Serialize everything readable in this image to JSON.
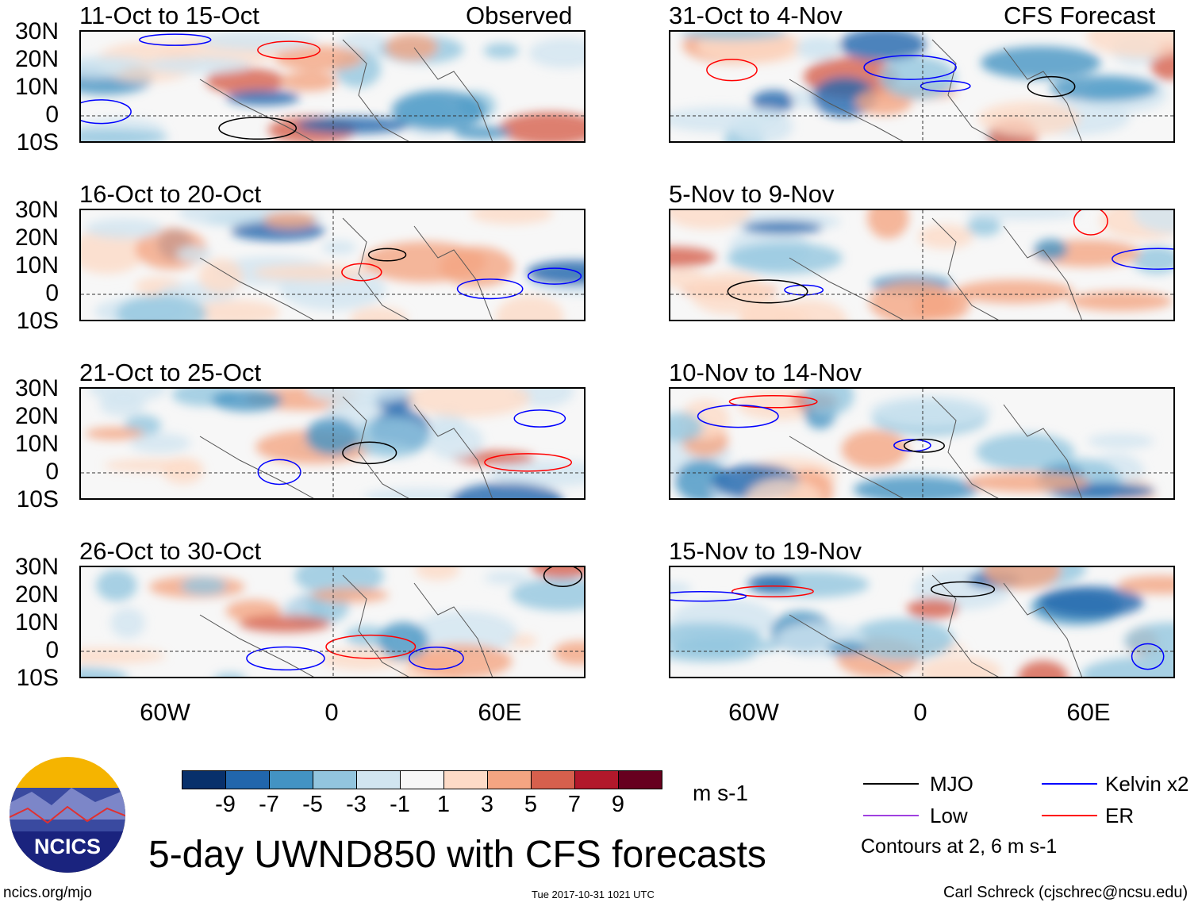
{
  "panels_left_header": "Observed",
  "panels_right_header": "CFS Forecast",
  "panels": [
    {
      "title": "11-Oct to 15-Oct",
      "side": "observed"
    },
    {
      "title": "16-Oct to 20-Oct",
      "side": "observed"
    },
    {
      "title": "21-Oct to 25-Oct",
      "side": "observed"
    },
    {
      "title": "26-Oct to 30-Oct",
      "side": "observed"
    },
    {
      "title": "31-Oct to 4-Nov",
      "side": "forecast"
    },
    {
      "title": "5-Nov to 9-Nov",
      "side": "forecast"
    },
    {
      "title": "10-Nov to 14-Nov",
      "side": "forecast"
    },
    {
      "title": "15-Nov to 19-Nov",
      "side": "forecast"
    }
  ],
  "lat_labels": [
    "30N",
    "20N",
    "10N",
    "0",
    "10S"
  ],
  "lon_labels": [
    "60W",
    "0",
    "60E"
  ],
  "colorbar": {
    "colors": [
      "#08306b",
      "#2166ac",
      "#4393c3",
      "#92c5de",
      "#d1e5f0",
      "#f7f7f7",
      "#fddbc7",
      "#f4a582",
      "#d6604d",
      "#b2182b",
      "#67001f"
    ],
    "ticks": [
      "-9",
      "-7",
      "-5",
      "-3",
      "-1",
      "1",
      "3",
      "5",
      "7",
      "9"
    ],
    "units": "m s-1"
  },
  "legend": {
    "items": [
      {
        "label": "MJO",
        "color": "#000000"
      },
      {
        "label": "Low",
        "color": "#a040e0"
      },
      {
        "label": "Kelvin x2",
        "color": "#0000ff"
      },
      {
        "label": "ER",
        "color": "#ff0000"
      }
    ],
    "contours_note": "Contours at 2, 6 m s-1"
  },
  "title": "5-day UWND850 with CFS forecasts",
  "logo_text": "NCICS",
  "site": "ncics.org/mjo",
  "timestamp": "Tue 2017-10-31 1021 UTC",
  "credit": "Carl Schreck (cjschrec@ncsu.edu)"
}
